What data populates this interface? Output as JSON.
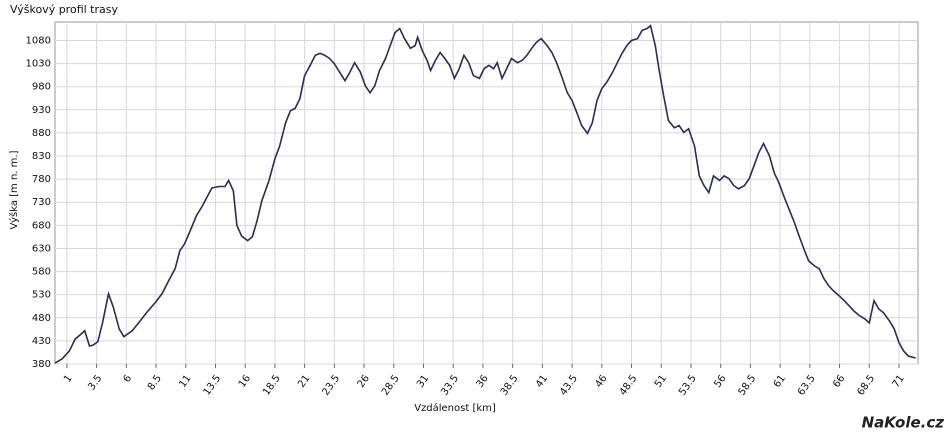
{
  "chart_data": {
    "type": "line",
    "title": "Výškový profil trasy",
    "y_label": "Výška [m n. m.]",
    "x_label": "Vzdálenost [km]",
    "watermark": "NaKole.cz",
    "color": "#2b2b5c",
    "grid": true,
    "xlim": [
      0,
      72.6
    ],
    "ylim": [
      380,
      1120
    ],
    "xticks": [
      1,
      3.5,
      6,
      8.5,
      11,
      13.5,
      16,
      18.5,
      21,
      23.5,
      26,
      28.5,
      31,
      33.5,
      36,
      38.5,
      41,
      43.5,
      46,
      48.5,
      51,
      53.5,
      56,
      58.5,
      61,
      63.5,
      66,
      68.5,
      71
    ],
    "yticks": [
      380,
      430,
      480,
      530,
      580,
      630,
      680,
      730,
      780,
      830,
      880,
      930,
      980,
      1030,
      1080
    ],
    "x": [
      0,
      0.6,
      1.2,
      1.7,
      2.2,
      2.5,
      2.9,
      3.2,
      3.6,
      4.0,
      4.5,
      4.9,
      5.4,
      5.8,
      6.5,
      7.1,
      7.7,
      8.4,
      9.0,
      9.6,
      10.1,
      10.5,
      10.9,
      11.4,
      11.9,
      12.4,
      12.8,
      13.2,
      13.8,
      14.3,
      14.6,
      15.0,
      15.3,
      15.7,
      16.2,
      16.6,
      17.0,
      17.4,
      18.0,
      18.5,
      18.9,
      19.4,
      19.8,
      20.2,
      20.6,
      21.0,
      21.5,
      21.9,
      22.3,
      22.7,
      23.1,
      23.5,
      24.0,
      24.4,
      24.8,
      25.2,
      25.7,
      26.1,
      26.5,
      26.9,
      27.3,
      27.8,
      28.2,
      28.6,
      29.0,
      29.4,
      29.9,
      30.3,
      30.5,
      30.9,
      31.3,
      31.6,
      32.0,
      32.4,
      32.8,
      33.2,
      33.6,
      34.0,
      34.4,
      34.8,
      35.2,
      35.7,
      36.1,
      36.5,
      36.9,
      37.2,
      37.6,
      38.0,
      38.4,
      38.9,
      39.3,
      39.7,
      40.1,
      40.5,
      40.9,
      41.4,
      41.8,
      42.2,
      42.6,
      43.1,
      43.5,
      43.9,
      44.3,
      44.8,
      45.2,
      45.6,
      46.0,
      46.4,
      46.9,
      47.3,
      47.7,
      48.1,
      48.5,
      49.0,
      49.4,
      49.8,
      50.1,
      50.5,
      50.8,
      51.2,
      51.6,
      52.1,
      52.5,
      52.9,
      53.3,
      53.8,
      54.2,
      54.6,
      55.0,
      55.4,
      55.9,
      56.3,
      56.7,
      57.1,
      57.5,
      58.0,
      58.4,
      58.8,
      59.2,
      59.6,
      60.1,
      60.5,
      60.9,
      61.3,
      61.8,
      62.2,
      62.6,
      63.0,
      63.4,
      63.9,
      64.3,
      64.7,
      65.1,
      65.5,
      66.0,
      66.4,
      66.8,
      67.2,
      67.6,
      68.1,
      68.5,
      68.9,
      69.3,
      69.7,
      70.2,
      70.6,
      71.0,
      71.4,
      71.8,
      72.4
    ],
    "values": [
      382,
      391,
      408,
      434,
      445,
      452,
      419,
      421,
      428,
      469,
      532,
      504,
      456,
      439,
      452,
      471,
      491,
      512,
      532,
      562,
      586,
      625,
      640,
      670,
      701,
      722,
      742,
      761,
      764,
      764,
      777,
      755,
      680,
      657,
      647,
      655,
      690,
      733,
      777,
      824,
      852,
      902,
      928,
      933,
      954,
      1004,
      1028,
      1048,
      1052,
      1048,
      1041,
      1030,
      1009,
      993,
      1011,
      1032,
      1011,
      982,
      967,
      982,
      1015,
      1041,
      1069,
      1097,
      1106,
      1084,
      1063,
      1069,
      1087,
      1058,
      1037,
      1015,
      1037,
      1054,
      1041,
      1026,
      998,
      1019,
      1048,
      1032,
      1004,
      998,
      1019,
      1026,
      1019,
      1032,
      998,
      1019,
      1041,
      1032,
      1037,
      1048,
      1063,
      1076,
      1084,
      1069,
      1054,
      1032,
      1004,
      967,
      950,
      924,
      896,
      879,
      902,
      950,
      976,
      989,
      1011,
      1032,
      1052,
      1069,
      1080,
      1084,
      1102,
      1106,
      1112,
      1069,
      1019,
      961,
      907,
      891,
      896,
      881,
      889,
      852,
      787,
      766,
      751,
      787,
      777,
      787,
      781,
      766,
      759,
      766,
      781,
      809,
      837,
      857,
      831,
      794,
      772,
      744,
      712,
      686,
      657,
      629,
      603,
      592,
      586,
      564,
      549,
      538,
      527,
      517,
      506,
      495,
      486,
      478,
      469,
      517,
      499,
      491,
      473,
      456,
      426,
      408,
      397,
      393
    ]
  }
}
